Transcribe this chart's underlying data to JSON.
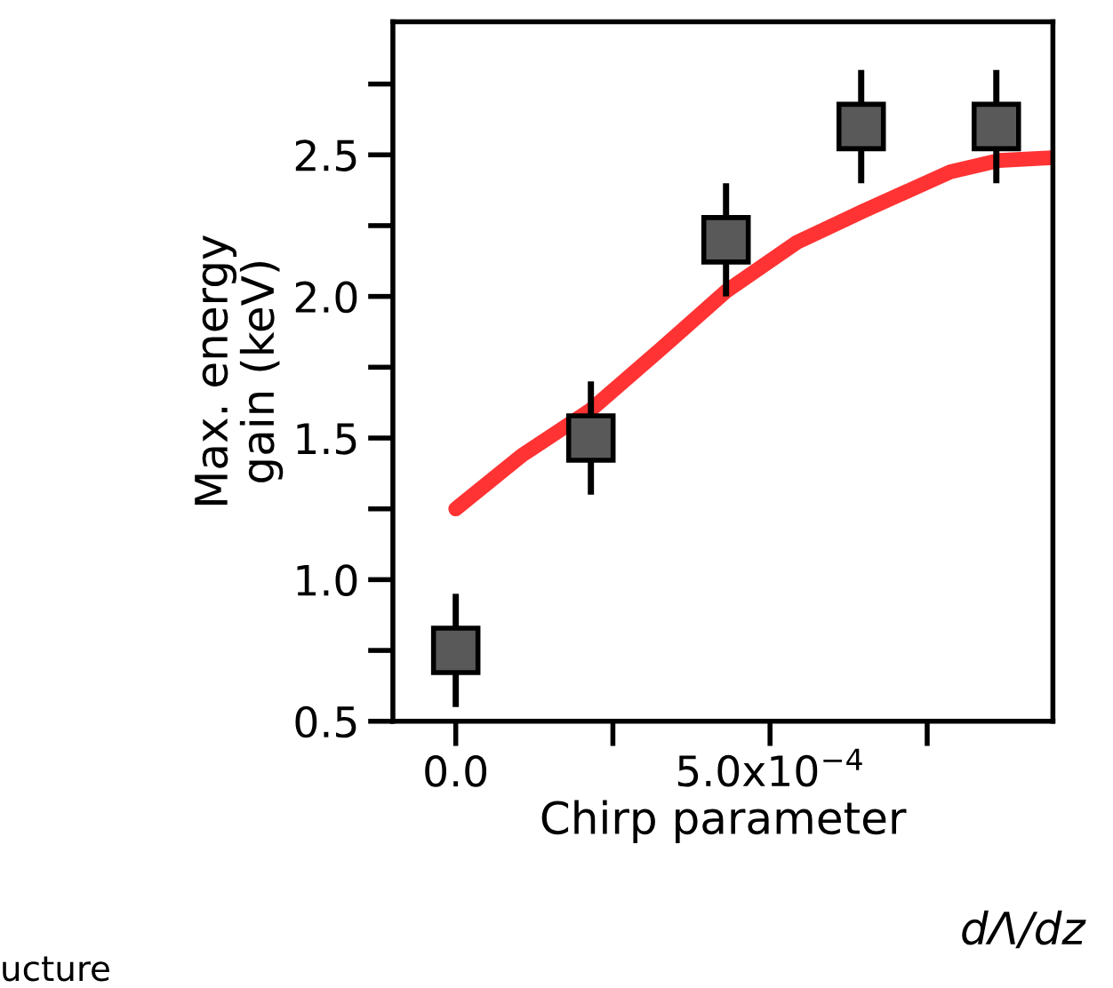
{
  "chart_data": {
    "type": "scatter",
    "xlabel": "Chirp parameter",
    "ylabel": "Max. energy\ngain (keV)",
    "xlim": [
      -0.0001,
      0.00095
    ],
    "ylim": [
      0.5,
      2.97
    ],
    "xticks": [
      {
        "value": 0,
        "label": "0.0"
      },
      {
        "value": 0.00025,
        "label": null
      },
      {
        "value": 0.0005,
        "label": "5.0x10$^{−4}$"
      },
      {
        "value": 0.00075,
        "label": null
      }
    ],
    "yticks": [
      0.5,
      {
        "value": 0.75,
        "label": null
      },
      {
        "value": 1.0,
        "label": "1.0"
      },
      {
        "value": 1.25,
        "label": null
      },
      1.5,
      {
        "value": 1.75,
        "label": null
      },
      {
        "value": 2.0,
        "label": "2.0"
      },
      {
        "value": 2.25,
        "label": null
      },
      2.5,
      {
        "value": 2.75,
        "label": null
      }
    ],
    "grid": false,
    "series": [
      {
        "marker": "square",
        "color": "#595959",
        "x": [
          0,
          0.000215,
          0.00043,
          0.000645,
          0.00086
        ],
        "values": [
          0.75,
          1.5,
          2.2,
          2.6,
          2.6
        ],
        "errors": [
          0.2,
          0.2,
          0.2,
          0.2,
          0.2
        ]
      },
      {
        "type": "line",
        "marker": "none",
        "line_style": "solid",
        "color": "#ff3333",
        "x": [
          0,
          0.000106,
          0.000215,
          0.000324,
          0.000431,
          0.000542,
          0.000647,
          0.000787,
          0.000864,
          0.000949
        ],
        "values": [
          1.25,
          1.44,
          1.6,
          1.81,
          2.02,
          2.19,
          2.3,
          2.44,
          2.48,
          2.49
        ]
      }
    ],
    "annotations": [
      "dΛ/dz",
      "ucture"
    ]
  }
}
